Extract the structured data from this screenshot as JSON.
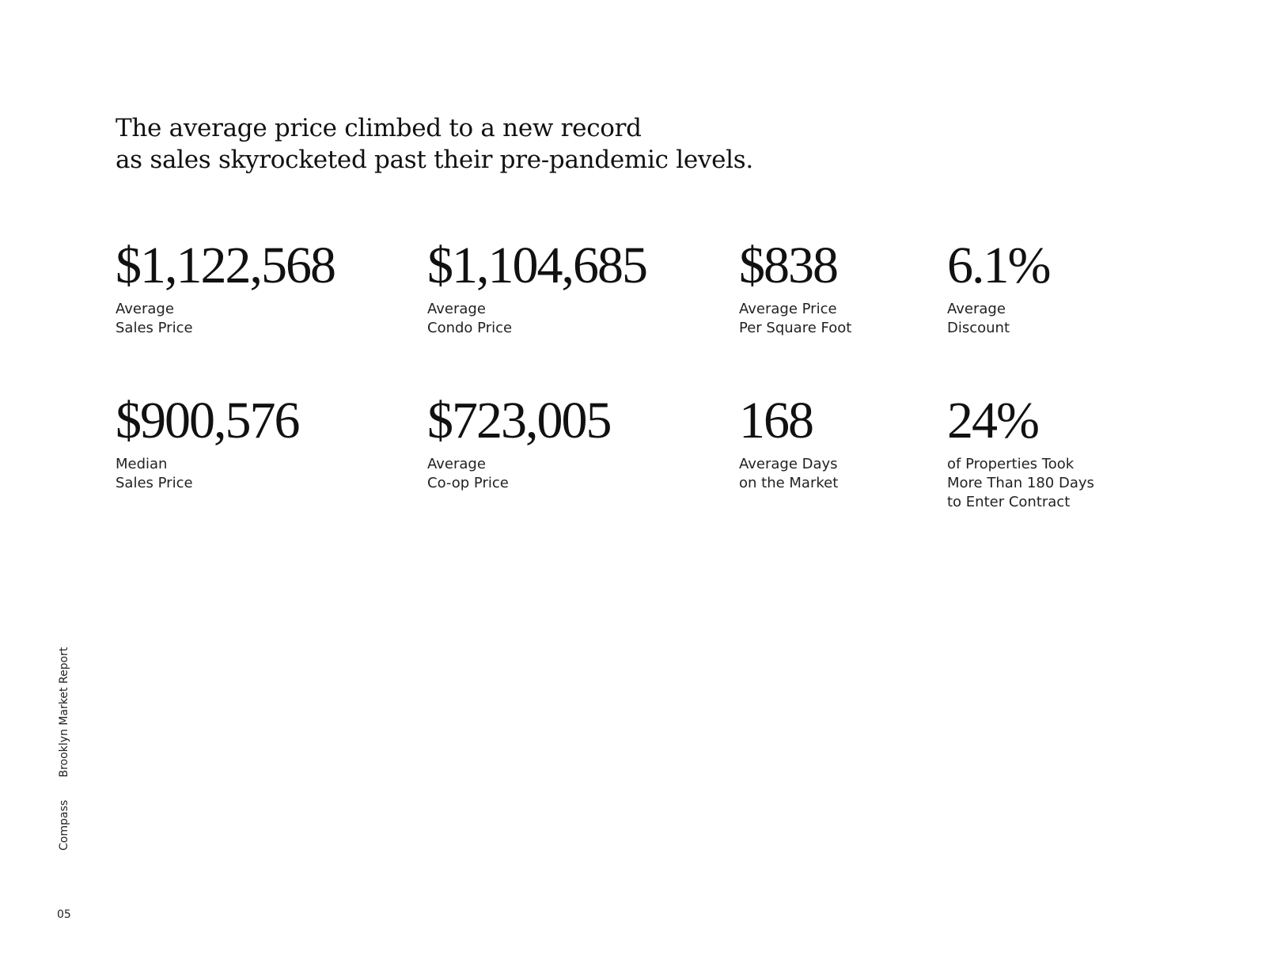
{
  "headline": {
    "line1": "The average price climbed to a new record",
    "line2": "as sales skyrocketed past their pre-pandemic levels."
  },
  "stats": [
    {
      "value": "$1,122,568",
      "label_lines": [
        "Average",
        "Sales Price"
      ]
    },
    {
      "value": "$1,104,685",
      "label_lines": [
        "Average",
        "Condo Price"
      ]
    },
    {
      "value": "$838",
      "label_lines": [
        "Average Price",
        "Per Square Foot"
      ]
    },
    {
      "value": "6.1%",
      "label_lines": [
        "Average",
        "Discount"
      ]
    },
    {
      "value": "$900,576",
      "label_lines": [
        "Median",
        "Sales Price"
      ]
    },
    {
      "value": "$723,005",
      "label_lines": [
        "Average",
        "Co-op Price"
      ]
    },
    {
      "value": "168",
      "label_lines": [
        "Average Days",
        "on the Market"
      ]
    },
    {
      "value": "24%",
      "label_lines": [
        "of Properties Took",
        "More Than 180 Days",
        "to Enter Contract"
      ]
    }
  ],
  "footer": {
    "brand": "Compass",
    "report_title": "Brooklyn Market Report",
    "page_number": "05"
  }
}
